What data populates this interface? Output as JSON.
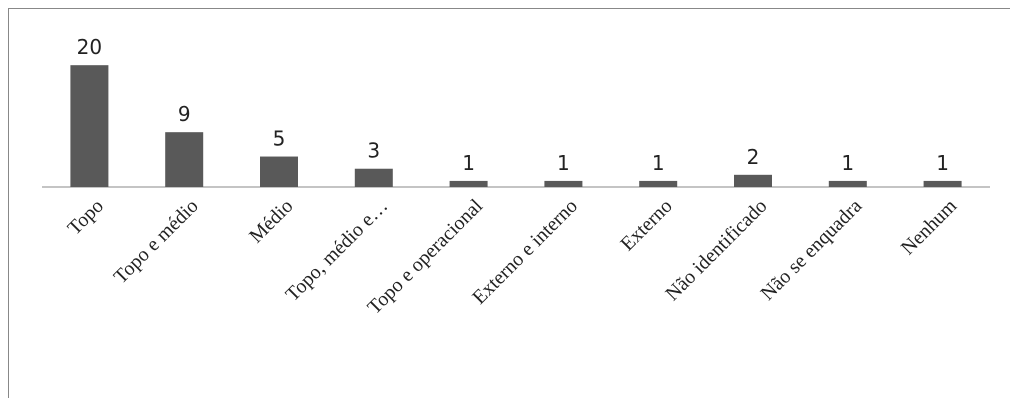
{
  "chart_data": {
    "type": "bar",
    "categories": [
      "Topo",
      "Topo e médio",
      "Médio",
      "Topo, médio e…",
      "Topo e operacional",
      "Externo e interno",
      "Externo",
      "Não identificado",
      "Não se enquadra",
      "Nenhum"
    ],
    "values": [
      20,
      9,
      5,
      3,
      1,
      1,
      1,
      2,
      1,
      1
    ],
    "ylim": [
      0,
      22
    ],
    "grid": false,
    "legend": "none",
    "bar_color": "#595959",
    "axis_color": "#888888",
    "label_color": "#222222"
  }
}
